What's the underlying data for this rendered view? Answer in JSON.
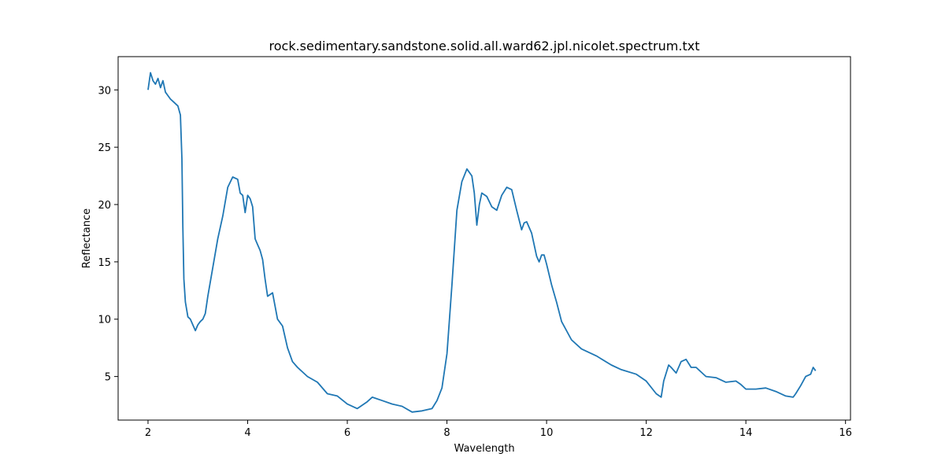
{
  "chart_data": {
    "type": "line",
    "title": "rock.sedimentary.sandstone.solid.all.ward62.jpl.nicolet.spectrum.txt",
    "xlabel": "Wavelength",
    "ylabel": "Reflectance",
    "xlim": [
      1.4,
      16.1
    ],
    "ylim": [
      1.2,
      32.9
    ],
    "xticks": [
      2,
      4,
      6,
      8,
      10,
      12,
      14,
      16
    ],
    "yticks": [
      5,
      10,
      15,
      20,
      25,
      30
    ],
    "grid": false,
    "legend": "none",
    "colors": {
      "line": "#1f77b4",
      "axes": "#000000",
      "background": "#ffffff"
    },
    "series": [
      {
        "x": [
          2.0,
          2.05,
          2.1,
          2.15,
          2.2,
          2.25,
          2.3,
          2.35,
          2.4,
          2.45,
          2.5,
          2.55,
          2.6,
          2.65,
          2.68,
          2.7,
          2.72,
          2.75,
          2.8,
          2.85,
          2.9,
          2.95,
          3.0,
          3.05,
          3.1,
          3.15,
          3.2,
          3.3,
          3.4,
          3.5,
          3.6,
          3.7,
          3.8,
          3.85,
          3.9,
          3.95,
          4.0,
          4.05,
          4.1,
          4.15,
          4.2,
          4.25,
          4.3,
          4.35,
          4.4,
          4.5,
          4.6,
          4.7,
          4.8,
          4.9,
          5.0,
          5.2,
          5.4,
          5.6,
          5.8,
          6.0,
          6.2,
          6.4,
          6.5,
          6.7,
          6.9,
          7.1,
          7.3,
          7.5,
          7.7,
          7.8,
          7.9,
          8.0,
          8.1,
          8.2,
          8.3,
          8.4,
          8.5,
          8.55,
          8.6,
          8.65,
          8.7,
          8.8,
          8.9,
          9.0,
          9.1,
          9.2,
          9.3,
          9.4,
          9.5,
          9.55,
          9.6,
          9.7,
          9.8,
          9.85,
          9.9,
          9.95,
          10.0,
          10.1,
          10.2,
          10.3,
          10.5,
          10.7,
          11.0,
          11.3,
          11.5,
          11.8,
          12.0,
          12.2,
          12.3,
          12.35,
          12.45,
          12.5,
          12.6,
          12.7,
          12.8,
          12.9,
          13.0,
          13.2,
          13.4,
          13.6,
          13.8,
          13.9,
          14.0,
          14.2,
          14.4,
          14.6,
          14.8,
          14.95,
          15.0,
          15.1,
          15.2,
          15.3,
          15.35,
          15.4
        ],
        "y": [
          30.0,
          31.5,
          30.8,
          30.5,
          31.0,
          30.2,
          30.8,
          29.8,
          29.5,
          29.2,
          29.0,
          28.8,
          28.6,
          27.8,
          24.0,
          18.0,
          13.5,
          11.5,
          10.2,
          10.0,
          9.5,
          9.0,
          9.5,
          9.8,
          10.0,
          10.5,
          12.0,
          14.5,
          17.0,
          19.0,
          21.5,
          22.4,
          22.2,
          21.0,
          20.8,
          19.3,
          20.8,
          20.5,
          19.8,
          17.0,
          16.5,
          16.0,
          15.2,
          13.5,
          12.0,
          12.3,
          10.0,
          9.4,
          7.5,
          6.3,
          5.8,
          5.0,
          4.5,
          3.5,
          3.3,
          2.6,
          2.2,
          2.8,
          3.2,
          2.9,
          2.6,
          2.4,
          1.9,
          2.0,
          2.2,
          2.9,
          4.0,
          7.0,
          13.0,
          19.5,
          22.0,
          23.1,
          22.5,
          21.0,
          18.2,
          20.0,
          21.0,
          20.7,
          19.8,
          19.5,
          20.8,
          21.5,
          21.3,
          19.5,
          17.8,
          18.4,
          18.5,
          17.5,
          15.5,
          15.0,
          15.6,
          15.6,
          14.8,
          13.0,
          11.5,
          9.8,
          8.2,
          7.4,
          6.8,
          6.0,
          5.6,
          5.2,
          4.6,
          3.5,
          3.2,
          4.6,
          6.0,
          5.8,
          5.3,
          6.3,
          6.5,
          5.8,
          5.8,
          5.0,
          4.9,
          4.5,
          4.6,
          4.3,
          3.9,
          3.9,
          4.0,
          3.7,
          3.3,
          3.2,
          3.5,
          4.2,
          5.0,
          5.2,
          5.8,
          5.5
        ]
      }
    ]
  }
}
